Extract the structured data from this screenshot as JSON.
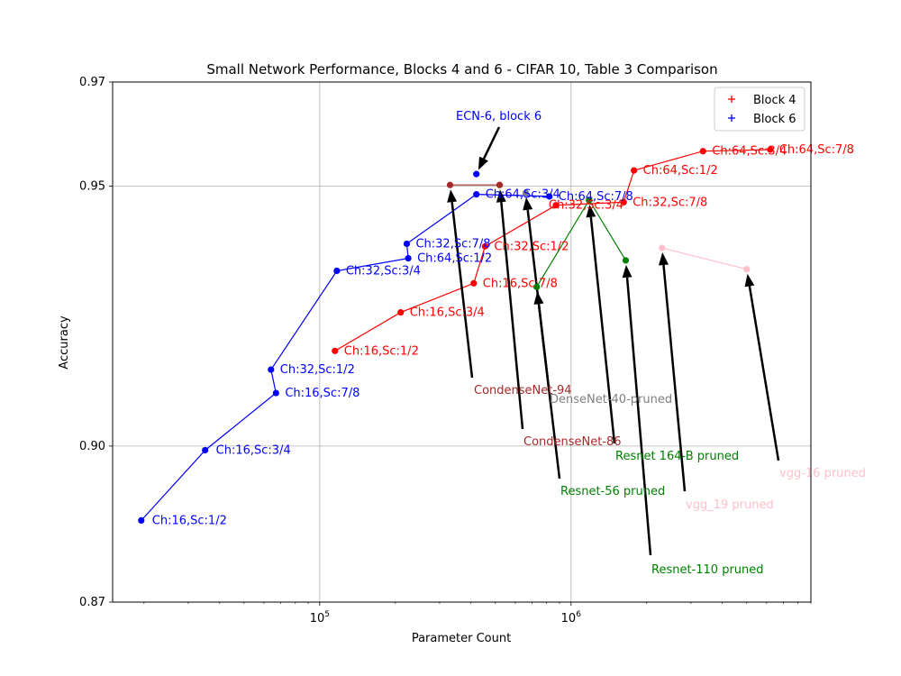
{
  "chart_data": {
    "type": "line",
    "title": "Small Network Performance, Blocks 4 and 6 - CIFAR 10, Table 3 Comparison",
    "xlabel": "Parameter Count",
    "ylabel": "Accuracy",
    "xscale": "log",
    "xlim": [
      15000,
      9000000
    ],
    "ylim": [
      0.87,
      0.97
    ],
    "x_ticks": [
      {
        "value": 100000,
        "label": "10^5"
      },
      {
        "value": 1000000,
        "label": "10^6"
      }
    ],
    "y_ticks": [
      {
        "value": 0.87,
        "label": "0.87"
      },
      {
        "value": 0.9,
        "label": "0.90"
      },
      {
        "value": 0.95,
        "label": "0.95"
      },
      {
        "value": 0.97,
        "label": "0.97"
      }
    ],
    "grid": true,
    "legend_position": "top-right",
    "legend": [
      {
        "label": "Block 4",
        "color": "#ff0000"
      },
      {
        "label": "Block 6",
        "color": "#0000ff"
      }
    ],
    "series": [
      {
        "name": "Block 4",
        "color": "#ff0000",
        "points": [
          {
            "x": 115000,
            "y": 0.9183,
            "label": "Ch:16,Sc:1/2"
          },
          {
            "x": 210000,
            "y": 0.9257,
            "label": "Ch:16,Sc:3/4"
          },
          {
            "x": 410000,
            "y": 0.9313,
            "label": "Ch:16,Sc:7/8"
          },
          {
            "x": 455000,
            "y": 0.9384,
            "label": "Ch:32,Sc:1/2"
          },
          {
            "x": 870000,
            "y": 0.9463,
            "label": "Ch:32,Sc:3/4"
          },
          {
            "x": 1620000,
            "y": 0.9469,
            "label": "Ch:32,Sc:7/8"
          },
          {
            "x": 1780000,
            "y": 0.953,
            "label": "Ch:64,Sc:1/2"
          },
          {
            "x": 3350000,
            "y": 0.9567,
            "label": "Ch:64,Sc:3/4"
          },
          {
            "x": 6200000,
            "y": 0.957,
            "label": "Ch:64,Sc:7/8"
          }
        ]
      },
      {
        "name": "Block 6",
        "color": "#0000ff",
        "points": [
          {
            "x": 19500,
            "y": 0.8857,
            "label": "Ch:16,Sc:1/2"
          },
          {
            "x": 35000,
            "y": 0.8992,
            "label": "Ch:16,Sc:3/4"
          },
          {
            "x": 67000,
            "y": 0.9102,
            "label": "Ch:16,Sc:7/8"
          },
          {
            "x": 64000,
            "y": 0.9147,
            "label": "Ch:32,Sc:1/2"
          },
          {
            "x": 117000,
            "y": 0.9337,
            "label": "Ch:32,Sc:3/4"
          },
          {
            "x": 225000,
            "y": 0.9361,
            "label": "Ch:64,Sc:1/2"
          },
          {
            "x": 222000,
            "y": 0.9389,
            "label": "Ch:32,Sc:7/8"
          },
          {
            "x": 420000,
            "y": 0.9484,
            "label": "Ch:64,Sc:3/4"
          },
          {
            "x": 820000,
            "y": 0.948,
            "label": "Ch:64,Sc:7/8"
          },
          {
            "x": 420000,
            "y": 0.9523,
            "label": "ECN-6, block 6"
          }
        ]
      }
    ],
    "comparisons": [
      {
        "label": "CondenseNet-94",
        "color": "#a52a2a",
        "points": [
          {
            "x": 330000,
            "y": 0.9502
          },
          {
            "x": 520000,
            "y": 0.9502
          }
        ]
      },
      {
        "label": "CondenseNet-86",
        "color": "#a52a2a",
        "points": [
          {
            "x": 520000,
            "y": 0.9502
          }
        ]
      },
      {
        "label": "DenseNet-40-pruned",
        "color": "#808080",
        "points": [
          {
            "x": 660000,
            "y": 0.9487
          }
        ]
      },
      {
        "label": "Resnet-56 pruned",
        "color": "#008000",
        "points": [
          {
            "x": 730000,
            "y": 0.9306
          },
          {
            "x": 1180000,
            "y": 0.9473
          }
        ]
      },
      {
        "label": "Resnet 164-B pruned",
        "color": "#008000",
        "points": [
          {
            "x": 1180000,
            "y": 0.9473
          }
        ]
      },
      {
        "label": "Resnet-110 pruned",
        "color": "#008000",
        "points": [
          {
            "x": 1180000,
            "y": 0.9473
          },
          {
            "x": 1650000,
            "y": 0.9357
          }
        ]
      },
      {
        "label": "vgg_19 pruned",
        "color": "#ffc0cb",
        "points": [
          {
            "x": 2300000,
            "y": 0.9381
          },
          {
            "x": 5000000,
            "y": 0.934
          }
        ]
      },
      {
        "label": "vgg-16 pruned",
        "color": "#ffc0cb",
        "points": [
          {
            "x": 5000000,
            "y": 0.934
          }
        ]
      }
    ],
    "annotations": [
      {
        "text": "ECN-6, block 6",
        "color": "#0000ff",
        "target": {
          "x": 420000,
          "y": 0.9523
        }
      },
      {
        "text": "CondenseNet-94",
        "color": "#a52a2a",
        "target": {
          "x": 330000,
          "y": 0.9502
        }
      },
      {
        "text": "CondenseNet-86",
        "color": "#a52a2a",
        "target": {
          "x": 520000,
          "y": 0.9502
        }
      },
      {
        "text": "DenseNet-40-pruned",
        "color": "#808080",
        "target": {
          "x": 660000,
          "y": 0.9487
        }
      },
      {
        "text": "Resnet-56 pruned",
        "color": "#008000",
        "target": {
          "x": 730000,
          "y": 0.9306
        }
      },
      {
        "text": "Resnet 164-B pruned",
        "color": "#008000",
        "target": {
          "x": 1180000,
          "y": 0.9473
        }
      },
      {
        "text": "Resnet-110 pruned",
        "color": "#008000",
        "target": {
          "x": 1650000,
          "y": 0.9357
        }
      },
      {
        "text": "vgg_19 pruned",
        "color": "#ffc0cb",
        "target": {
          "x": 2300000,
          "y": 0.9381
        }
      },
      {
        "text": "vgg-16 pruned",
        "color": "#ffc0cb",
        "target": {
          "x": 5000000,
          "y": 0.934
        }
      }
    ]
  }
}
